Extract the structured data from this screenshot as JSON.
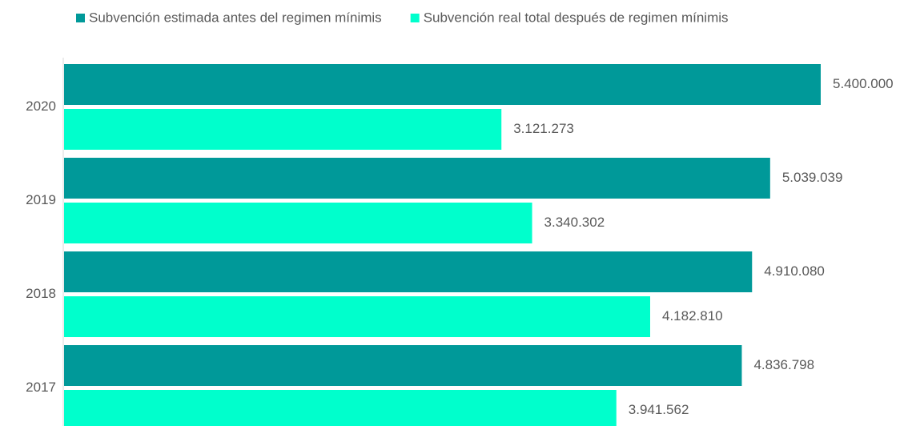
{
  "chart_data": {
    "type": "bar",
    "orientation": "horizontal",
    "categories": [
      "2020",
      "2019",
      "2018",
      "2017"
    ],
    "series": [
      {
        "name": "Subvención estimada antes del regimen mínimis",
        "color": "#009999",
        "values": [
          5400000,
          5039039,
          4910080,
          4836798
        ],
        "value_labels": [
          "5.400.000",
          "5.039.039",
          "4.910.080",
          "4.836.798"
        ]
      },
      {
        "name": "Subvención real total después de regimen mínimis",
        "color": "#00ffcc",
        "values": [
          3121273,
          3340302,
          4182810,
          3941562
        ],
        "value_labels": [
          "3.121.273",
          "3.340.302",
          "4.182.810",
          "3.941.562"
        ]
      }
    ],
    "legend": "top"
  }
}
